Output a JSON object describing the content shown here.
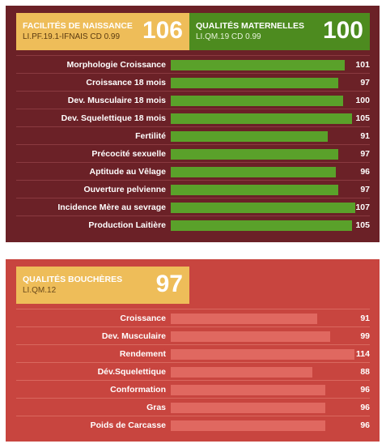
{
  "top_panel": {
    "headers": [
      {
        "title": "FACILITÉS DE NAISSANCE",
        "subtitle": "LI.PF.19.1-IFNAIS CD 0.99",
        "value": "106"
      },
      {
        "title": "QUALITÉS MATERNELLES",
        "subtitle": "LI.QM.19 CD 0.99",
        "value": "100"
      }
    ],
    "rows": [
      {
        "label": "Morphologie Croissance",
        "value": "101",
        "score": 101
      },
      {
        "label": "Croissance 18 mois",
        "value": "97",
        "score": 97
      },
      {
        "label": "Dev. Musculaire 18 mois",
        "value": "100",
        "score": 100
      },
      {
        "label": "Dev. Squelettique 18 mois",
        "value": "105",
        "score": 105
      },
      {
        "label": "Fertilité",
        "value": "91",
        "score": 91
      },
      {
        "label": "Précocité sexuelle",
        "value": "97",
        "score": 97
      },
      {
        "label": "Aptitude au Vêlage",
        "value": "96",
        "score": 96
      },
      {
        "label": "Ouverture pelvienne",
        "value": "97",
        "score": 97
      },
      {
        "label": "Incidence Mère au sevrage",
        "value": "107",
        "score": 107
      },
      {
        "label": "Production Laitière",
        "value": "105",
        "score": 105
      }
    ]
  },
  "bottom_panel": {
    "header": {
      "title": "QUALITÉS BOUCHÈRES",
      "subtitle": "LI.QM.12",
      "value": "97"
    },
    "rows": [
      {
        "label": "Croissance",
        "value": "91",
        "score": 91
      },
      {
        "label": "Dev. Musculaire",
        "value": "99",
        "score": 99
      },
      {
        "label": "Rendement",
        "value": "114",
        "score": 114
      },
      {
        "label": "Dév.Squelettique",
        "value": "88",
        "score": 88
      },
      {
        "label": "Conformation",
        "value": "96",
        "score": 96
      },
      {
        "label": "Gras",
        "value": "96",
        "score": 96
      },
      {
        "label": "Poids de Carcasse",
        "value": "96",
        "score": 96
      }
    ]
  },
  "colors": {
    "top_panel_bg": "#6b2127",
    "bottom_panel_bg": "#c8453f",
    "header_yellow": "#eebd59",
    "header_green": "#4d8b1f",
    "bar_green": "#5aa12a",
    "bar_salmon": "#e06860"
  }
}
